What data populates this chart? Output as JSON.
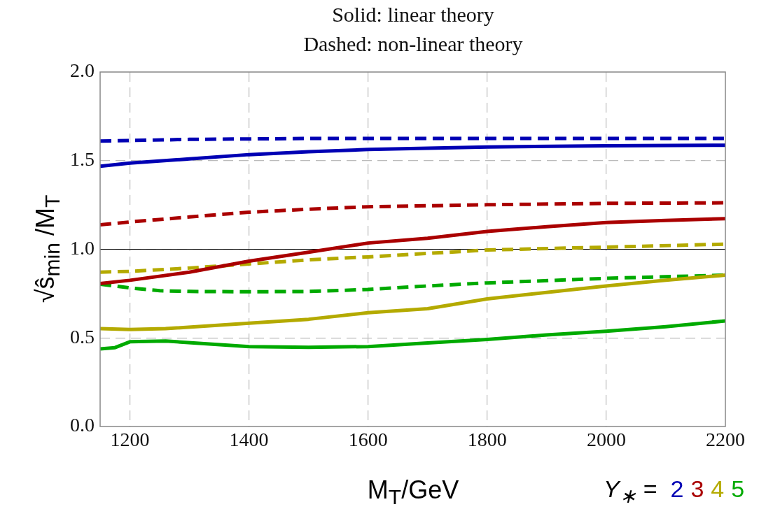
{
  "chart_data": {
    "type": "line",
    "title": "Solid: linear theory",
    "subtitle": "Dashed: non-linear theory",
    "xlabel": "M$_{T}$/GeV",
    "ylabel": "√ŝ$_{min}$ /M$_{T}$",
    "legend_title": "Y$_{∗}$ =",
    "xlim": [
      1150,
      2200
    ],
    "xticks": [
      1200,
      1400,
      1600,
      1800,
      2000,
      2200
    ],
    "ylim": [
      0,
      2
    ],
    "yticks": [
      {
        "value": 0,
        "label": "0.0"
      },
      {
        "value": 0.5,
        "label": "0.5"
      },
      {
        "value": 1,
        "label": "1.0"
      },
      {
        "value": 1.5,
        "label": "1.5"
      },
      {
        "value": 2,
        "label": "2.0"
      }
    ],
    "grid": true,
    "legend": "bottom right",
    "marker": "none",
    "ref_lines": [
      {
        "axis": "y",
        "value": 1,
        "color": "#000000"
      }
    ],
    "series": [
      {
        "name": "2",
        "color": "#0000b4",
        "line_style": "solid",
        "x": [
          1150,
          1200,
          1300,
          1400,
          1500,
          1600,
          1800,
          2000,
          2200
        ],
        "values": [
          1.468,
          1.486,
          1.51,
          1.534,
          1.55,
          1.563,
          1.577,
          1.584,
          1.587
        ]
      },
      {
        "color": "#0000b4",
        "line_style": "dashed",
        "x": [
          1150,
          1300,
          1500,
          2200
        ],
        "values": [
          1.61,
          1.62,
          1.625,
          1.625
        ]
      },
      {
        "name": "3",
        "color": "#aa0000",
        "line_style": "solid",
        "x": [
          1150,
          1200,
          1300,
          1400,
          1500,
          1600,
          1700,
          1800,
          1900,
          2000,
          2100,
          2200
        ],
        "values": [
          0.807,
          0.825,
          0.871,
          0.933,
          0.983,
          1.035,
          1.062,
          1.101,
          1.127,
          1.151,
          1.163,
          1.173
        ]
      },
      {
        "color": "#aa0000",
        "line_style": "dashed",
        "x": [
          1150,
          1200,
          1300,
          1400,
          1500,
          1600,
          1800,
          2000,
          2200
        ],
        "values": [
          1.138,
          1.154,
          1.182,
          1.209,
          1.226,
          1.24,
          1.251,
          1.259,
          1.262
        ]
      },
      {
        "name": "4",
        "color": "#b4aa00",
        "line_style": "solid",
        "x": [
          1150,
          1200,
          1260,
          1400,
          1500,
          1600,
          1700,
          1800,
          2000,
          2100,
          2200
        ],
        "values": [
          0.552,
          0.547,
          0.552,
          0.583,
          0.605,
          0.642,
          0.665,
          0.72,
          0.793,
          0.825,
          0.854
        ]
      },
      {
        "color": "#b4aa00",
        "line_style": "dashed",
        "x": [
          1150,
          1200,
          1300,
          1400,
          1500,
          1600,
          1800,
          2000,
          2200
        ],
        "values": [
          0.871,
          0.875,
          0.894,
          0.917,
          0.94,
          0.957,
          0.996,
          1.012,
          1.029
        ]
      },
      {
        "name": "5",
        "color": "#00aa00",
        "line_style": "solid",
        "x": [
          1150,
          1175,
          1200,
          1260,
          1400,
          1500,
          1600,
          1700,
          1800,
          1900,
          2000,
          2100,
          2200
        ],
        "values": [
          0.438,
          0.445,
          0.478,
          0.482,
          0.451,
          0.447,
          0.451,
          0.471,
          0.491,
          0.517,
          0.537,
          0.563,
          0.596
        ]
      },
      {
        "color": "#00aa00",
        "line_style": "dashed",
        "x": [
          1150,
          1200,
          1250,
          1300,
          1400,
          1500,
          1600,
          1700,
          1800,
          2000,
          2200
        ],
        "values": [
          0.803,
          0.782,
          0.766,
          0.762,
          0.76,
          0.762,
          0.773,
          0.793,
          0.81,
          0.836,
          0.854
        ]
      }
    ]
  }
}
